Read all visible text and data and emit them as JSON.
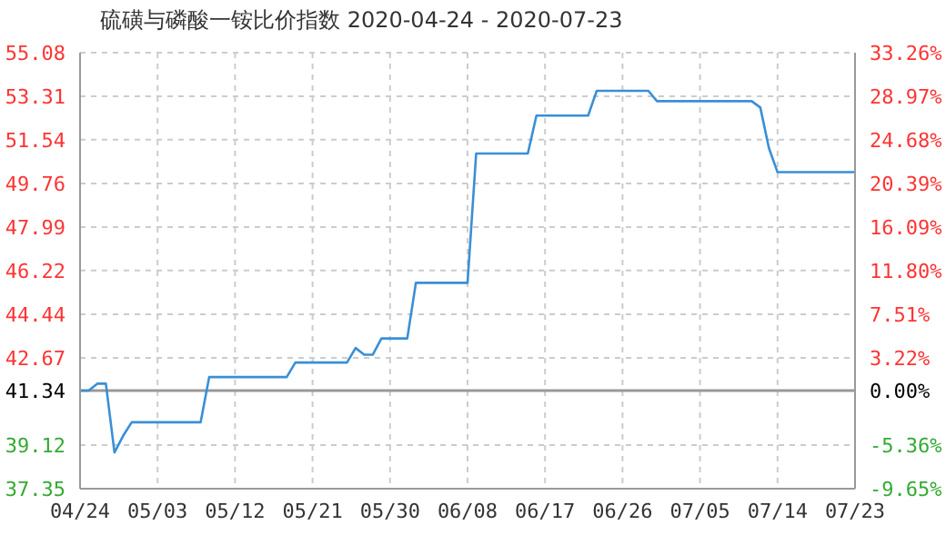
{
  "chart_data": {
    "type": "line",
    "title": "硫磺与磷酸一铵比价指数 2020-04-24 - 2020-07-23",
    "x": [
      "2020-04-24",
      "2020-04-25",
      "2020-04-26",
      "2020-04-27",
      "2020-04-28",
      "2020-04-29",
      "2020-04-30",
      "2020-05-08",
      "2020-05-09",
      "2020-05-18",
      "2020-05-19",
      "2020-05-25",
      "2020-05-26",
      "2020-05-27",
      "2020-05-28",
      "2020-05-29",
      "2020-06-01",
      "2020-06-02",
      "2020-06-08",
      "2020-06-09",
      "2020-06-15",
      "2020-06-16",
      "2020-06-22",
      "2020-06-23",
      "2020-06-29",
      "2020-06-30",
      "2020-07-11",
      "2020-07-12",
      "2020-07-13",
      "2020-07-14",
      "2020-07-23"
    ],
    "series": [
      {
        "color": "#3a8fd6",
        "values": [
          41.34,
          41.34,
          41.62,
          41.62,
          38.82,
          39.5,
          40.05,
          40.05,
          41.89,
          41.89,
          42.48,
          42.48,
          43.07,
          42.8,
          42.8,
          43.46,
          43.46,
          45.72,
          45.72,
          50.98,
          50.98,
          52.52,
          52.52,
          53.53,
          53.53,
          53.11,
          53.11,
          52.85,
          51.2,
          50.22,
          50.22
        ]
      }
    ],
    "xlim": [
      "2020-04-24",
      "2020-07-23"
    ],
    "xticks": [
      {
        "value": "2020-04-24",
        "label": "04/24"
      },
      {
        "value": "2020-05-03",
        "label": "05/03"
      },
      {
        "value": "2020-05-12",
        "label": "05/12"
      },
      {
        "value": "2020-05-21",
        "label": "05/21"
      },
      {
        "value": "2020-05-30",
        "label": "05/30"
      },
      {
        "value": "2020-06-08",
        "label": "06/08"
      },
      {
        "value": "2020-06-17",
        "label": "06/17"
      },
      {
        "value": "2020-06-26",
        "label": "06/26"
      },
      {
        "value": "2020-07-05",
        "label": "07/05"
      },
      {
        "value": "2020-07-14",
        "label": "07/14"
      },
      {
        "value": "2020-07-23",
        "label": "07/23"
      }
    ],
    "ylim": [
      37.35,
      55.08
    ],
    "yticks": [
      37.35,
      39.12,
      41.34,
      42.67,
      44.44,
      46.22,
      47.99,
      49.76,
      51.54,
      53.31,
      55.08
    ],
    "y2lim": [
      -9.65,
      33.26
    ],
    "y2ticks": [
      {
        "value": -9.65,
        "label": "-9.65%"
      },
      {
        "value": -5.36,
        "label": "-5.36%"
      },
      {
        "value": 0,
        "label": "0.00%"
      },
      {
        "value": 3.22,
        "label": "3.22%"
      },
      {
        "value": 7.51,
        "label": "7.51%"
      },
      {
        "value": 11.8,
        "label": "11.80%"
      },
      {
        "value": 16.09,
        "label": "16.09%"
      },
      {
        "value": 20.39,
        "label": "20.39%"
      },
      {
        "value": 24.68,
        "label": "24.68%"
      },
      {
        "value": 28.97,
        "label": "28.97%"
      },
      {
        "value": 33.26,
        "label": "33.26%"
      }
    ],
    "ref_lines": [
      {
        "axis": "y",
        "value": 41.34,
        "color": "#999999"
      }
    ],
    "grid": true,
    "marker": "none",
    "line_style": "solid"
  }
}
